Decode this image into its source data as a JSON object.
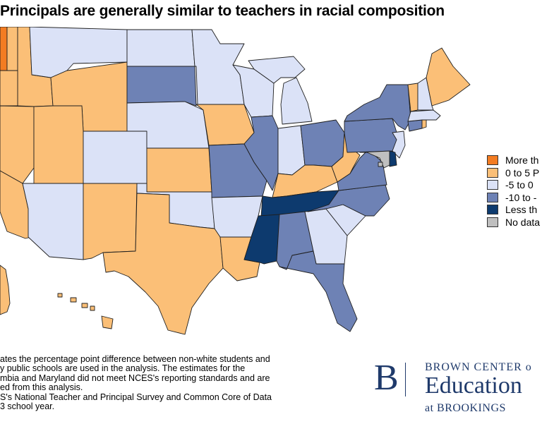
{
  "title": "Principals are generally similar to teachers in racial composition",
  "colors": {
    "more_than_5": "#f37c22",
    "0_to_5": "#fbbf77",
    "neg5_to_0": "#dbe2f7",
    "neg10_to_neg5": "#6e82b5",
    "less_than_neg10": "#0d3a6e",
    "no_data": "#bfbfbf"
  },
  "legend": [
    {
      "label": "More th",
      "color_key": "more_than_5"
    },
    {
      "label": "0 to 5 P",
      "color_key": "0_to_5"
    },
    {
      "label": "-5 to 0",
      "color_key": "neg5_to_0"
    },
    {
      "label": "-10 to -",
      "color_key": "neg10_to_neg5"
    },
    {
      "label": "Less th",
      "color_key": "less_than_neg10"
    },
    {
      "label": "No data",
      "color_key": "no_data"
    }
  ],
  "footnote": [
    "ates the percentage point difference between non-white students and",
    "y public schools are used in the analysis. The estimates for the",
    "mbia and Maryland did not meet NCES's reporting standards and are",
    "ed from this analysis.",
    "S's National Teacher and Principal Survey and Common Core of Data",
    "3 school year."
  ],
  "brand": {
    "letter": "B",
    "top": "BROWN CENTER o",
    "middle": "Education",
    "bottom": "at BROOKINGS"
  },
  "states": {
    "WA": "more_than_5",
    "OR": "0_to_5",
    "CA": "0_to_5",
    "NV": "0_to_5",
    "ID": "0_to_5",
    "MT": "neg5_to_0",
    "WY": "0_to_5",
    "UT": "0_to_5",
    "AZ": "neg5_to_0",
    "CO": "neg5_to_0",
    "NM": "0_to_5",
    "ND": "neg5_to_0",
    "SD": "neg10_to_neg5",
    "NE": "neg5_to_0",
    "KS": "0_to_5",
    "OK": "neg5_to_0",
    "TX": "0_to_5",
    "MN": "neg5_to_0",
    "IA": "0_to_5",
    "MO": "neg10_to_neg5",
    "AR": "neg5_to_0",
    "LA": "0_to_5",
    "WI": "neg5_to_0",
    "IL": "neg10_to_neg5",
    "MS": "less_than_neg10",
    "MI": "neg5_to_0",
    "IN": "neg5_to_0",
    "OH": "neg10_to_neg5",
    "KY": "0_to_5",
    "TN": "less_than_neg10",
    "AL": "neg10_to_neg5",
    "GA": "neg5_to_0",
    "FL": "neg10_to_neg5",
    "SC": "neg5_to_0",
    "NC": "neg10_to_neg5",
    "VA": "neg10_to_neg5",
    "WV": "0_to_5",
    "PA": "neg10_to_neg5",
    "NY": "neg10_to_neg5",
    "VT": "0_to_5",
    "NH": "neg5_to_0",
    "ME": "0_to_5",
    "MA": "neg5_to_0",
    "RI": "0_to_5",
    "CT": "neg10_to_neg5",
    "NJ": "neg5_to_0",
    "DE": "less_than_neg10",
    "MD": "no_data",
    "DC": "no_data",
    "AK": "0_to_5",
    "HI": "0_to_5"
  }
}
